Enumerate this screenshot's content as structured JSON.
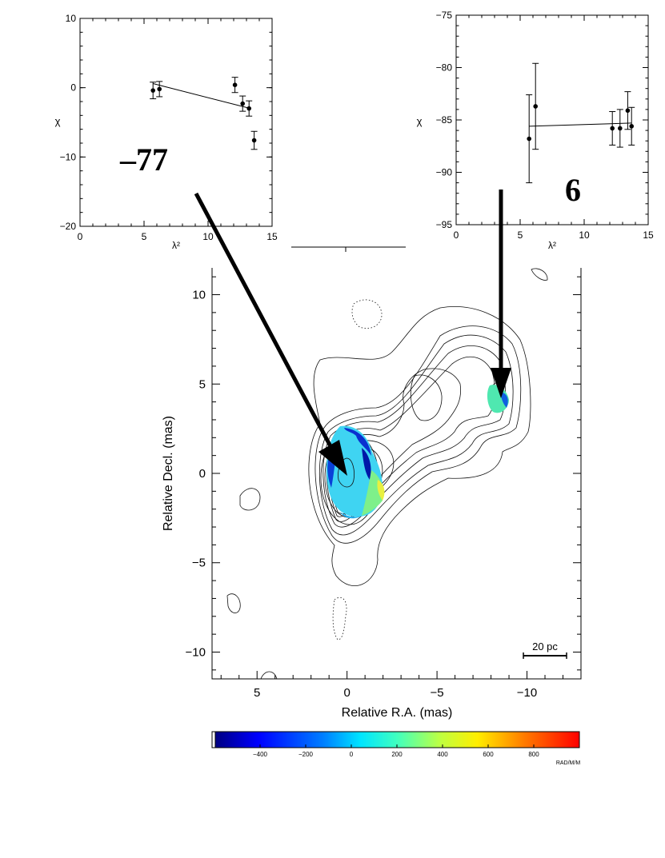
{
  "chart_data": [
    {
      "id": "rm-left",
      "type": "scatter",
      "xlabel": "λ²",
      "ylabel": "χ",
      "xlim": [
        0,
        15
      ],
      "ylim": [
        -20,
        10
      ],
      "xticks": [
        0,
        5,
        10,
        15
      ],
      "yticks": [
        -20,
        -10,
        0,
        10
      ],
      "points": [
        {
          "x": 5.7,
          "y": -0.4,
          "err": 1.2
        },
        {
          "x": 6.2,
          "y": -0.2,
          "err": 1.1
        },
        {
          "x": 12.1,
          "y": 0.4,
          "err": 1.1
        },
        {
          "x": 12.7,
          "y": -2.3,
          "err": 1.1
        },
        {
          "x": 13.2,
          "y": -3.0,
          "err": 1.1
        },
        {
          "x": 13.6,
          "y": -7.6,
          "err": 1.3
        }
      ],
      "fit": {
        "x": [
          5.7,
          13.3
        ],
        "y": [
          0.6,
          -3.0
        ]
      },
      "annotation": "–77"
    },
    {
      "id": "rm-right",
      "type": "scatter",
      "xlabel": "λ²",
      "ylabel": "χ",
      "xlim": [
        0,
        15
      ],
      "ylim": [
        -95,
        -75
      ],
      "xticks": [
        0,
        5,
        10,
        15
      ],
      "yticks": [
        -95,
        -90,
        -85,
        -80,
        -75
      ],
      "points": [
        {
          "x": 5.7,
          "y": -86.8,
          "err": 4.2
        },
        {
          "x": 6.2,
          "y": -83.7,
          "err": 4.1
        },
        {
          "x": 12.2,
          "y": -85.8,
          "err": 1.6
        },
        {
          "x": 12.8,
          "y": -85.8,
          "err": 1.8
        },
        {
          "x": 13.4,
          "y": -84.1,
          "err": 1.8
        },
        {
          "x": 13.7,
          "y": -85.6,
          "err": 1.8
        }
      ],
      "fit": {
        "x": [
          5.7,
          13.7
        ],
        "y": [
          -85.6,
          -85.3
        ]
      },
      "annotation": "6"
    },
    {
      "id": "rm-map",
      "type": "heatmap",
      "xlabel": "Relative R.A. (mas)",
      "ylabel": "Relative Decl. (mas)",
      "xlim": [
        7.5,
        -13
      ],
      "ylim": [
        -11.5,
        11.5
      ],
      "xticks": [
        5,
        0,
        -5,
        -10
      ],
      "xticklabels": [
        "5",
        "0",
        "−5",
        "−10"
      ],
      "yticks": [
        10,
        5,
        0,
        -5,
        -10
      ],
      "yticklabels": [
        "10",
        "5",
        "0",
        "−5",
        "−10"
      ],
      "scalebar": {
        "label": "20 pc",
        "from": -9.8,
        "to": -12.2,
        "y": -10.2
      },
      "contours": {
        "core": {
          "cx": 0.0,
          "cy": -0.2,
          "levels": 11
        },
        "jet_knot": {
          "cx": -8.4,
          "cy": 4.4
        }
      },
      "rm_regions": [
        {
          "name": "core",
          "cx": 0.0,
          "cy": -0.2,
          "rm": -77
        },
        {
          "name": "knot",
          "cx": -8.4,
          "cy": 4.4,
          "rm": 6
        }
      ]
    }
  ],
  "colorbar": {
    "ticks": [
      -400,
      -200,
      0,
      200,
      400,
      600,
      800
    ],
    "ticklabels": [
      "−400",
      "−200",
      "0",
      "200",
      "400",
      "600",
      "800"
    ],
    "min": -600,
    "max": 1000,
    "unit": "RAD/M/M"
  }
}
